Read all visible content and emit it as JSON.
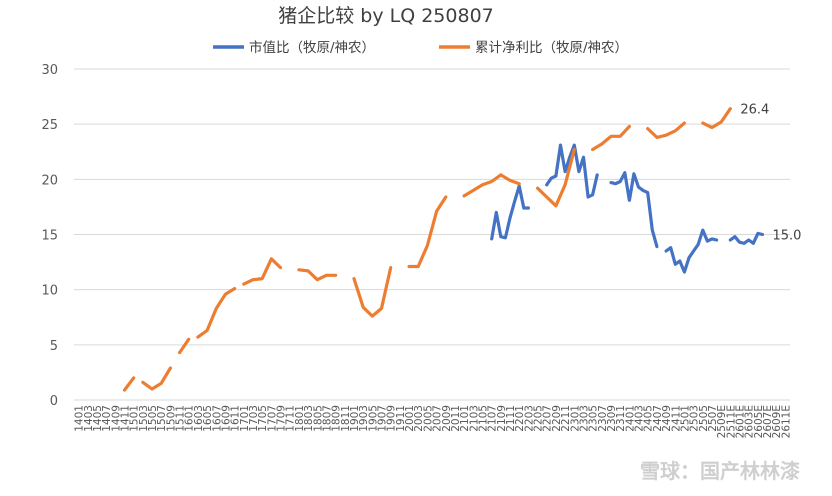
{
  "watermark": "雪球：国产林林漆",
  "colors": {
    "market_cap_ratio": "#4472C4",
    "cum_profit_ratio": "#ED7D31",
    "grid": "#D9D9D9"
  },
  "chart_data": {
    "type": "line",
    "title": "猪企比较 by LQ 250807",
    "ylim": [
      0,
      30
    ],
    "yticks": [
      0,
      5,
      10,
      15,
      20,
      25,
      30
    ],
    "grid": "horizontal",
    "legend_position": "top",
    "x": [
      "1401",
      "1403",
      "1405",
      "1407",
      "1409",
      "1411",
      "1501",
      "1503",
      "1505",
      "1507",
      "1509",
      "1511",
      "1601",
      "1603",
      "1605",
      "1607",
      "1609",
      "1611",
      "1701",
      "1703",
      "1705",
      "1707",
      "1709",
      "1711",
      "1801",
      "1803",
      "1805",
      "1807",
      "1809",
      "1811",
      "1901",
      "1903",
      "1905",
      "1907",
      "1909",
      "1911",
      "2001",
      "2003",
      "2005",
      "2007",
      "2009",
      "2011",
      "2101",
      "2103",
      "2105",
      "2107",
      "2109",
      "2111",
      "2201",
      "2203",
      "2205",
      "2207",
      "2209",
      "2211",
      "2301",
      "2303",
      "2305",
      "2307",
      "2309",
      "2311",
      "2401",
      "2403",
      "2405",
      "2407",
      "2409",
      "2411",
      "2501",
      "2503",
      "2505",
      "2507",
      "2509E",
      "2511E",
      "2601E",
      "2603E",
      "2605E",
      "2607E",
      "2609E",
      "2611E"
    ],
    "series": [
      {
        "name": "市值比（牧原/神农）",
        "end_label": "15.0",
        "points": [
          {
            "x": 45.0,
            "y": 14.6
          },
          {
            "x": 45.5,
            "y": 17.0
          },
          {
            "x": 46.0,
            "y": 14.8
          },
          {
            "x": 46.5,
            "y": 14.7
          },
          {
            "x": 47.0,
            "y": 16.5
          },
          {
            "x": 47.5,
            "y": 18.0
          },
          {
            "x": 48.0,
            "y": 19.4
          },
          {
            "x": 48.5,
            "y": 17.4
          },
          {
            "x": 49.0,
            "y": 17.4
          },
          null,
          {
            "x": 51.0,
            "y": 19.5
          },
          {
            "x": 51.5,
            "y": 20.1
          },
          {
            "x": 52.0,
            "y": 20.3
          },
          {
            "x": 52.5,
            "y": 23.1
          },
          {
            "x": 53.0,
            "y": 20.7
          },
          {
            "x": 53.5,
            "y": 22.0
          },
          {
            "x": 54.0,
            "y": 23.1
          },
          {
            "x": 54.5,
            "y": 20.7
          },
          {
            "x": 55.0,
            "y": 22.0
          },
          {
            "x": 55.5,
            "y": 18.4
          },
          {
            "x": 56.0,
            "y": 18.6
          },
          {
            "x": 56.5,
            "y": 20.4
          },
          null,
          {
            "x": 58.0,
            "y": 19.7
          },
          {
            "x": 58.5,
            "y": 19.6
          },
          {
            "x": 59.0,
            "y": 19.8
          },
          {
            "x": 59.5,
            "y": 20.6
          },
          {
            "x": 60.0,
            "y": 18.1
          },
          {
            "x": 60.5,
            "y": 20.5
          },
          {
            "x": 61.0,
            "y": 19.3
          },
          {
            "x": 61.5,
            "y": 19.0
          },
          {
            "x": 62.0,
            "y": 18.8
          },
          {
            "x": 62.5,
            "y": 15.4
          },
          {
            "x": 63.0,
            "y": 13.9
          },
          null,
          {
            "x": 64.0,
            "y": 13.5
          },
          {
            "x": 64.5,
            "y": 13.8
          },
          {
            "x": 65.0,
            "y": 12.3
          },
          {
            "x": 65.5,
            "y": 12.6
          },
          {
            "x": 66.0,
            "y": 11.6
          },
          {
            "x": 66.5,
            "y": 12.9
          },
          {
            "x": 67.0,
            "y": 13.5
          },
          {
            "x": 67.5,
            "y": 14.1
          },
          {
            "x": 68.0,
            "y": 15.4
          },
          {
            "x": 68.5,
            "y": 14.4
          },
          {
            "x": 69.0,
            "y": 14.6
          },
          {
            "x": 69.5,
            "y": 14.5
          },
          null,
          {
            "x": 71.0,
            "y": 14.5
          },
          {
            "x": 71.5,
            "y": 14.8
          },
          {
            "x": 72.0,
            "y": 14.3
          },
          {
            "x": 72.5,
            "y": 14.2
          },
          {
            "x": 73.0,
            "y": 14.5
          },
          {
            "x": 73.5,
            "y": 14.2
          },
          {
            "x": 74.0,
            "y": 15.1
          },
          {
            "x": 74.5,
            "y": 15.0
          }
        ]
      },
      {
        "name": "累计净利比（牧原/神农）",
        "end_label": "26.4",
        "points": [
          {
            "x": 5.0,
            "y": 0.9
          },
          {
            "x": 6.0,
            "y": 2.0
          },
          null,
          {
            "x": 7.0,
            "y": 1.6
          },
          {
            "x": 8.0,
            "y": 1.0
          },
          {
            "x": 9.0,
            "y": 1.5
          },
          {
            "x": 10.0,
            "y": 2.9
          },
          null,
          {
            "x": 11.0,
            "y": 4.3
          },
          {
            "x": 12.0,
            "y": 5.5
          },
          null,
          {
            "x": 13.0,
            "y": 5.7
          },
          {
            "x": 14.0,
            "y": 6.3
          },
          {
            "x": 15.0,
            "y": 8.3
          },
          {
            "x": 16.0,
            "y": 9.6
          },
          {
            "x": 17.0,
            "y": 10.1
          },
          null,
          {
            "x": 18.0,
            "y": 10.5
          },
          {
            "x": 19.0,
            "y": 10.9
          },
          {
            "x": 20.0,
            "y": 11.0
          },
          {
            "x": 21.0,
            "y": 12.8
          },
          {
            "x": 22.0,
            "y": 12.0
          },
          null,
          {
            "x": 24.0,
            "y": 11.8
          },
          {
            "x": 25.0,
            "y": 11.7
          },
          {
            "x": 26.0,
            "y": 10.9
          },
          {
            "x": 27.0,
            "y": 11.3
          },
          {
            "x": 28.0,
            "y": 11.3
          },
          null,
          {
            "x": 30.0,
            "y": 11.0
          },
          {
            "x": 31.0,
            "y": 8.4
          },
          {
            "x": 32.0,
            "y": 7.6
          },
          {
            "x": 33.0,
            "y": 8.3
          },
          {
            "x": 34.0,
            "y": 12.0
          },
          null,
          {
            "x": 36.0,
            "y": 12.1
          },
          {
            "x": 37.0,
            "y": 12.1
          },
          {
            "x": 38.0,
            "y": 14.0
          },
          {
            "x": 39.0,
            "y": 17.1
          },
          {
            "x": 40.0,
            "y": 18.4
          },
          null,
          {
            "x": 42.0,
            "y": 18.5
          },
          {
            "x": 43.0,
            "y": 19.0
          },
          {
            "x": 44.0,
            "y": 19.5
          },
          {
            "x": 45.0,
            "y": 19.8
          },
          {
            "x": 46.0,
            "y": 20.4
          },
          {
            "x": 47.0,
            "y": 19.9
          },
          {
            "x": 48.0,
            "y": 19.6
          },
          null,
          {
            "x": 50.0,
            "y": 19.2
          },
          {
            "x": 51.0,
            "y": 18.4
          },
          {
            "x": 52.0,
            "y": 17.6
          },
          {
            "x": 53.0,
            "y": 19.5
          },
          {
            "x": 54.0,
            "y": 22.7
          },
          null,
          {
            "x": 56.0,
            "y": 22.7
          },
          {
            "x": 57.0,
            "y": 23.2
          },
          {
            "x": 58.0,
            "y": 23.9
          },
          {
            "x": 59.0,
            "y": 23.9
          },
          {
            "x": 60.0,
            "y": 24.8
          },
          null,
          {
            "x": 62.0,
            "y": 24.6
          },
          {
            "x": 63.0,
            "y": 23.8
          },
          {
            "x": 64.0,
            "y": 24.0
          },
          {
            "x": 65.0,
            "y": 24.4
          },
          {
            "x": 66.0,
            "y": 25.1
          },
          null,
          {
            "x": 68.0,
            "y": 25.1
          },
          {
            "x": 69.0,
            "y": 24.7
          },
          {
            "x": 70.0,
            "y": 25.2
          },
          {
            "x": 71.0,
            "y": 26.4
          }
        ]
      }
    ]
  }
}
